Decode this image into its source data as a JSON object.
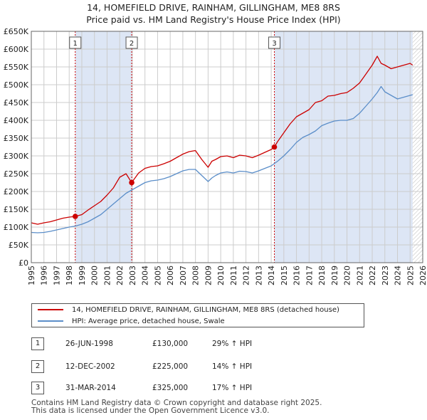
{
  "title_line1": "14, HOMEFIELD DRIVE, RAINHAM, GILLINGHAM, ME8 8RS",
  "title_line2": "Price paid vs. HM Land Registry's House Price Index (HPI)",
  "colors": {
    "property": "#cc0000",
    "hpi": "#5b8ec9",
    "shade": "#dde6f5",
    "grid": "#cccccc",
    "vline": "#cc0000"
  },
  "chart_data": {
    "type": "line",
    "xlim": [
      1995,
      2026
    ],
    "ylim": [
      0,
      650000
    ],
    "y_ticks": [
      0,
      50000,
      100000,
      150000,
      200000,
      250000,
      300000,
      350000,
      400000,
      450000,
      500000,
      550000,
      600000,
      650000
    ],
    "y_tick_labels": [
      "£0",
      "£50K",
      "£100K",
      "£150K",
      "£200K",
      "£250K",
      "£300K",
      "£350K",
      "£400K",
      "£450K",
      "£500K",
      "£550K",
      "£600K",
      "£650K"
    ],
    "x_ticks": [
      1995,
      1996,
      1997,
      1998,
      1999,
      2000,
      2001,
      2002,
      2003,
      2004,
      2005,
      2006,
      2007,
      2008,
      2009,
      2010,
      2011,
      2012,
      2013,
      2014,
      2015,
      2016,
      2017,
      2018,
      2019,
      2020,
      2021,
      2022,
      2023,
      2024,
      2025,
      2026
    ],
    "x_tick_labels": [
      "1995",
      "1996",
      "1997",
      "1998",
      "1999",
      "2000",
      "2001",
      "2002",
      "2003",
      "2004",
      "2005",
      "2006",
      "2007",
      "2008",
      "2009",
      "2010",
      "2011",
      "2012",
      "2013",
      "2014",
      "2015",
      "2016",
      "2017",
      "2018",
      "2019",
      "2020",
      "2021",
      "2022",
      "2023",
      "2024",
      "2025",
      "2026"
    ],
    "grid": true,
    "shaded_periods": [
      [
        1998.48,
        2002.95
      ],
      [
        2014.25,
        2025.2
      ]
    ],
    "future_hatch_from": 2025.2,
    "series": [
      {
        "name": "14, HOMEFIELD DRIVE, RAINHAM, GILLINGHAM, ME8 8RS (detached house)",
        "x": [
          1995,
          1995.5,
          1996,
          1996.5,
          1997,
          1997.5,
          1998,
          1998.48,
          1999,
          1999.5,
          2000,
          2000.5,
          2001,
          2001.5,
          2002,
          2002.5,
          2002.95,
          2003.5,
          2004,
          2004.5,
          2005,
          2005.5,
          2006,
          2006.5,
          2007,
          2007.5,
          2008,
          2008.5,
          2009,
          2009.3,
          2009.6,
          2010,
          2010.5,
          2011,
          2011.5,
          2012,
          2012.5,
          2013,
          2013.5,
          2014,
          2014.25,
          2014.5,
          2015,
          2015.5,
          2016,
          2016.5,
          2017,
          2017.5,
          2018,
          2018.5,
          2019,
          2019.5,
          2020,
          2020.5,
          2021,
          2021.5,
          2022,
          2022.4,
          2022.7,
          2023,
          2023.5,
          2024,
          2024.5,
          2025,
          2025.2
        ],
        "values": [
          112000,
          108000,
          112000,
          115000,
          120000,
          125000,
          128000,
          130000,
          135000,
          148000,
          160000,
          172000,
          190000,
          210000,
          240000,
          250000,
          225000,
          252000,
          265000,
          270000,
          272000,
          278000,
          285000,
          295000,
          305000,
          312000,
          315000,
          290000,
          268000,
          285000,
          290000,
          298000,
          300000,
          295000,
          302000,
          300000,
          295000,
          302000,
          310000,
          318000,
          325000,
          340000,
          365000,
          390000,
          410000,
          420000,
          430000,
          450000,
          455000,
          468000,
          470000,
          475000,
          478000,
          490000,
          505000,
          530000,
          555000,
          580000,
          560000,
          555000,
          545000,
          550000,
          555000,
          560000,
          555000
        ]
      },
      {
        "name": "HPI: Average price, detached house, Swale",
        "x": [
          1995,
          1995.5,
          1996,
          1996.5,
          1997,
          1997.5,
          1998,
          1998.5,
          1999,
          1999.5,
          2000,
          2000.5,
          2001,
          2001.5,
          2002,
          2002.5,
          2003,
          2003.5,
          2004,
          2004.5,
          2005,
          2005.5,
          2006,
          2006.5,
          2007,
          2007.5,
          2008,
          2008.5,
          2009,
          2009.3,
          2009.6,
          2010,
          2010.5,
          2011,
          2011.5,
          2012,
          2012.5,
          2013,
          2013.5,
          2014,
          2014.5,
          2015,
          2015.5,
          2016,
          2016.5,
          2017,
          2017.5,
          2018,
          2018.5,
          2019,
          2019.5,
          2020,
          2020.5,
          2021,
          2021.5,
          2022,
          2022.4,
          2022.7,
          2023,
          2023.5,
          2024,
          2024.5,
          2025,
          2025.2
        ],
        "values": [
          85000,
          84000,
          85000,
          88000,
          92000,
          96000,
          100000,
          103000,
          108000,
          115000,
          125000,
          135000,
          150000,
          165000,
          180000,
          195000,
          205000,
          215000,
          225000,
          230000,
          232000,
          236000,
          242000,
          250000,
          258000,
          262000,
          262000,
          245000,
          228000,
          238000,
          245000,
          252000,
          255000,
          252000,
          257000,
          256000,
          252000,
          258000,
          265000,
          272000,
          285000,
          300000,
          318000,
          338000,
          352000,
          360000,
          370000,
          385000,
          392000,
          398000,
          400000,
          400000,
          405000,
          420000,
          440000,
          460000,
          478000,
          495000,
          480000,
          470000,
          460000,
          465000,
          470000,
          472000
        ]
      }
    ],
    "transactions_markers": [
      {
        "label": "1",
        "x": 1998.48,
        "y": 130000
      },
      {
        "label": "2",
        "x": 2002.95,
        "y": 225000
      },
      {
        "label": "3",
        "x": 2014.25,
        "y": 325000
      }
    ]
  },
  "legend": {
    "property_label": "14, HOMEFIELD DRIVE, RAINHAM, GILLINGHAM, ME8 8RS (detached house)",
    "hpi_label": "HPI: Average price, detached house, Swale"
  },
  "transactions": [
    {
      "num": "1",
      "date": "26-JUN-1998",
      "price": "£130,000",
      "hpi": "29% ↑ HPI"
    },
    {
      "num": "2",
      "date": "12-DEC-2002",
      "price": "£225,000",
      "hpi": "14% ↑ HPI"
    },
    {
      "num": "3",
      "date": "31-MAR-2014",
      "price": "£325,000",
      "hpi": "17% ↑ HPI"
    }
  ],
  "footer_line1": "Contains HM Land Registry data © Crown copyright and database right 2025.",
  "footer_line2": "This data is licensed under the Open Government Licence v3.0."
}
